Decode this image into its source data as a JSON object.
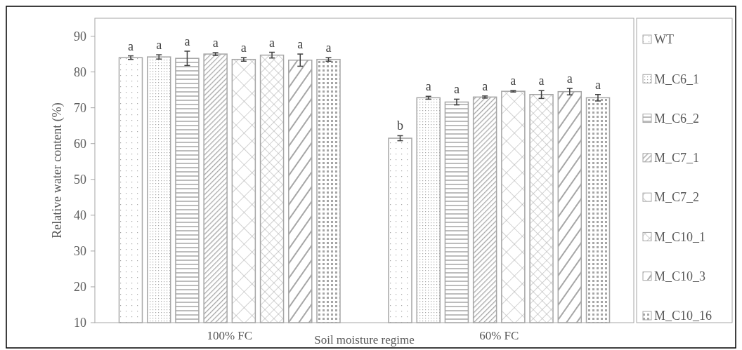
{
  "chart_data": {
    "type": "bar",
    "xlabel": "Soil moisture regime",
    "ylabel": "Relative water content (%)",
    "categories": [
      "100% FC",
      "60% FC"
    ],
    "ylim": [
      10,
      95
    ],
    "yticks": [
      10,
      20,
      30,
      40,
      50,
      60,
      70,
      80,
      90
    ],
    "grid": false,
    "legend": "right",
    "series": [
      {
        "name": "WT",
        "color": "#a6a6a6",
        "values": [
          84,
          61.5
        ],
        "errors": [
          0.5,
          0.7
        ],
        "value_labels": [
          "a",
          "b"
        ]
      },
      {
        "name": "M_C6_1",
        "color": "#a6a6a6",
        "values": [
          84.2,
          72.8
        ],
        "errors": [
          0.6,
          0.4
        ],
        "value_labels": [
          "a",
          "a"
        ]
      },
      {
        "name": "M_C6_2",
        "color": "#a6a6a6",
        "values": [
          83.8,
          71.6
        ],
        "errors": [
          2,
          0.8
        ],
        "value_labels": [
          "a",
          "a"
        ]
      },
      {
        "name": "M_C7_1",
        "color": "#a6a6a6",
        "values": [
          85,
          73
        ],
        "errors": [
          0.4,
          0.3
        ],
        "value_labels": [
          "a",
          "a"
        ]
      },
      {
        "name": "M_C7_2",
        "color": "#a6a6a6",
        "values": [
          83.5,
          74.6
        ],
        "errors": [
          0.5,
          0.2
        ],
        "value_labels": [
          "a",
          "a"
        ]
      },
      {
        "name": "M_C10_1",
        "color": "#a6a6a6",
        "values": [
          84.7,
          73.7
        ],
        "errors": [
          0.8,
          1.1
        ],
        "value_labels": [
          "a",
          "a"
        ]
      },
      {
        "name": "M_C10_3",
        "color": "#a6a6a6",
        "values": [
          83.3,
          74.5
        ],
        "errors": [
          1.7,
          0.9
        ],
        "value_labels": [
          "a",
          "a"
        ]
      },
      {
        "name": "M_C10_16",
        "color": "#a6a6a6",
        "values": [
          83.5,
          72.8
        ],
        "errors": [
          0.5,
          0.9
        ],
        "value_labels": [
          "a",
          "a"
        ]
      }
    ]
  }
}
